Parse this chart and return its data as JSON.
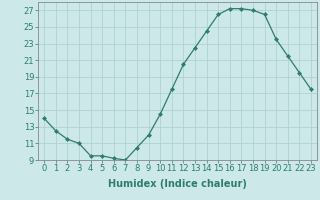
{
  "x": [
    0,
    1,
    2,
    3,
    4,
    5,
    6,
    7,
    8,
    9,
    10,
    11,
    12,
    13,
    14,
    15,
    16,
    17,
    18,
    19,
    20,
    21,
    22,
    23
  ],
  "y": [
    14.0,
    12.5,
    11.5,
    11.0,
    9.5,
    9.5,
    9.2,
    9.0,
    10.5,
    12.0,
    14.5,
    17.5,
    20.5,
    22.5,
    24.5,
    26.5,
    27.2,
    27.2,
    27.0,
    26.5,
    23.5,
    21.5,
    19.5,
    17.5
  ],
  "line_color": "#2e7d6e",
  "marker": "D",
  "marker_size": 2.0,
  "bg_color": "#cce8e8",
  "grid_color": "#aacece",
  "xlabel": "Humidex (Indice chaleur)",
  "ylim": [
    9,
    28
  ],
  "xlim": [
    -0.5,
    23.5
  ],
  "yticks": [
    9,
    11,
    13,
    15,
    17,
    19,
    21,
    23,
    25,
    27
  ],
  "xtick_labels": [
    "0",
    "1",
    "2",
    "3",
    "4",
    "5",
    "6",
    "7",
    "8",
    "9",
    "10",
    "11",
    "12",
    "13",
    "14",
    "15",
    "16",
    "17",
    "18",
    "19",
    "20",
    "21",
    "22",
    "23"
  ],
  "tick_fontsize": 6,
  "xlabel_fontsize": 7
}
